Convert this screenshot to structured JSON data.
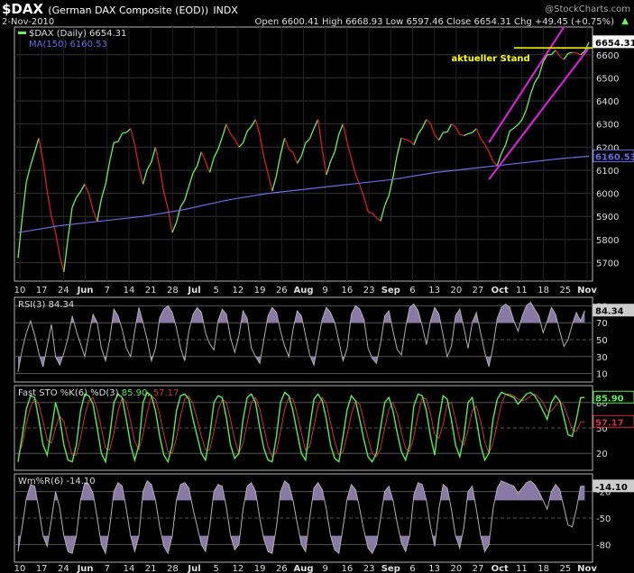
{
  "header": {
    "symbol": "$DAX",
    "name": "(German DAX Composite (EOD))",
    "exchange": "INDX",
    "date": "2-Nov-2010",
    "watermark": "@StockCharts.com",
    "ohlc": "Open 6600.41  High 6668.93  Low 6597.46  Close 6654.31  Chg +49.45 (+0.75%)",
    "chg_arrow": "▲"
  },
  "colors": {
    "background": "#000000",
    "panel_border": "#b5b5b5",
    "price_up": "#6cf15a",
    "price_down": "#d42020",
    "ma": "#6a6ae8",
    "channel": "#e81ee8",
    "level": "#ffff00",
    "indicator_line": "#b0b0b0",
    "indicator_fill": "#8a79a6",
    "stoch_k": "#58ec52",
    "stoch_d": "#d43030"
  },
  "chart_data": [
    {
      "type": "line",
      "panel": "price",
      "title": "$DAX (Daily) 6654.31",
      "legend": [
        {
          "label": "$DAX (Daily) 6654.31",
          "color": "#6cf15a"
        },
        {
          "label": "MA(150) 6160.53",
          "color": "#6a6ae8"
        }
      ],
      "ylim": [
        5620,
        6720
      ],
      "yticks": [
        5700,
        5800,
        5900,
        6000,
        6100,
        6200,
        6300,
        6400,
        6500,
        6600
      ],
      "xticks": [
        "10",
        "17",
        "24",
        "Jun",
        "7",
        "14",
        "21",
        "28",
        "Jul",
        "5",
        "12",
        "19",
        "26",
        "Aug",
        "9",
        "16",
        "23",
        "Sep",
        "6",
        "13",
        "20",
        "27",
        "Oct",
        "11",
        "18",
        "25",
        "Nov"
      ],
      "pivots": [
        [
          0,
          5720
        ],
        [
          2,
          6050
        ],
        [
          5,
          6240
        ],
        [
          8,
          5900
        ],
        [
          11,
          5660
        ],
        [
          13,
          5940
        ],
        [
          16,
          6040
        ],
        [
          19,
          5880
        ],
        [
          23,
          6220
        ],
        [
          27,
          6280
        ],
        [
          30,
          6040
        ],
        [
          33,
          6200
        ],
        [
          37,
          5830
        ],
        [
          41,
          6030
        ],
        [
          44,
          6180
        ],
        [
          46,
          6090
        ],
        [
          50,
          6300
        ],
        [
          53,
          6200
        ],
        [
          57,
          6320
        ],
        [
          61,
          6010
        ],
        [
          64,
          6240
        ],
        [
          67,
          6130
        ],
        [
          72,
          6320
        ],
        [
          74,
          6080
        ],
        [
          78,
          6300
        ],
        [
          80,
          6150
        ],
        [
          84,
          5920
        ],
        [
          87,
          5880
        ],
        [
          89,
          5990
        ],
        [
          92,
          6240
        ],
        [
          95,
          6210
        ],
        [
          98,
          6320
        ],
        [
          101,
          6230
        ],
        [
          104,
          6300
        ],
        [
          107,
          6250
        ],
        [
          110,
          6280
        ],
        [
          113,
          6180
        ],
        [
          115,
          6120
        ],
        [
          118,
          6270
        ],
        [
          121,
          6320
        ],
        [
          124,
          6480
        ],
        [
          127,
          6600
        ],
        [
          129,
          6620
        ],
        [
          131,
          6580
        ],
        [
          133,
          6610
        ],
        [
          135,
          6600
        ],
        [
          137,
          6654.31
        ]
      ],
      "ma150": [
        [
          0,
          5830
        ],
        [
          10,
          5860
        ],
        [
          20,
          5880
        ],
        [
          30,
          5900
        ],
        [
          40,
          5930
        ],
        [
          50,
          5970
        ],
        [
          60,
          6000
        ],
        [
          70,
          6020
        ],
        [
          80,
          6040
        ],
        [
          90,
          6060
        ],
        [
          100,
          6090
        ],
        [
          110,
          6110
        ],
        [
          120,
          6130
        ],
        [
          130,
          6150
        ],
        [
          137,
          6160.53
        ]
      ],
      "last_value": "6654.31",
      "ma_last_value": "6160.53",
      "annotation": "aktueller Stand",
      "level": 6630
    },
    {
      "type": "area",
      "panel": "rsi",
      "title": "RSI(3) 84.34",
      "ylim": [
        0,
        100
      ],
      "yticks": [
        10,
        30,
        50,
        70,
        90
      ],
      "series": [
        {
          "name": "RSI(3)",
          "values": [
            12,
            38,
            58,
            72,
            55,
            34,
            18,
            42,
            68,
            30,
            20,
            34,
            52,
            78,
            60,
            45,
            30,
            55,
            80,
            70,
            40,
            25,
            50,
            86,
            78,
            62,
            40,
            30,
            60,
            88,
            70,
            50,
            25,
            40,
            76,
            86,
            90,
            82,
            64,
            40,
            25,
            60,
            80,
            88,
            82,
            58,
            45,
            38,
            72,
            86,
            80,
            52,
            35,
            55,
            84,
            75,
            40,
            30,
            22,
            50,
            78,
            88,
            82,
            60,
            42,
            30,
            62,
            84,
            78,
            55,
            32,
            20,
            48,
            74,
            88,
            82,
            70,
            48,
            25,
            40,
            80,
            90,
            86,
            74,
            40,
            28,
            22,
            46,
            78,
            84,
            60,
            38,
            32,
            64,
            88,
            92,
            84,
            66,
            44,
            72,
            88,
            80,
            55,
            30,
            42,
            78,
            86,
            64,
            40,
            70,
            82,
            58,
            35,
            18,
            42,
            75,
            88,
            92,
            88,
            72,
            60,
            78,
            90,
            94,
            86,
            78,
            58,
            72,
            88,
            80,
            60,
            42,
            50,
            68,
            82,
            72,
            84.34
          ]
        }
      ],
      "last_value": "84.34"
    },
    {
      "type": "line",
      "panel": "stoch",
      "title": "Fast STO %K(6) %D(3) 85.90, 57.17",
      "ylim": [
        0,
        100
      ],
      "yticks": [
        20,
        50,
        80
      ],
      "series": [
        {
          "name": "%K(6)",
          "values": [
            10,
            40,
            72,
            88,
            86,
            60,
            30,
            18,
            48,
            80,
            62,
            30,
            12,
            10,
            30,
            70,
            90,
            88,
            78,
            50,
            20,
            10,
            40,
            80,
            90,
            86,
            60,
            30,
            12,
            30,
            80,
            92,
            88,
            70,
            40,
            18,
            10,
            30,
            70,
            88,
            90,
            84,
            60,
            40,
            20,
            12,
            40,
            80,
            88,
            86,
            62,
            30,
            14,
            20,
            60,
            86,
            90,
            80,
            50,
            26,
            12,
            10,
            40,
            80,
            92,
            88,
            70,
            44,
            20,
            12,
            50,
            84,
            90,
            82,
            60,
            30,
            14,
            10,
            40,
            72,
            88,
            82,
            60,
            36,
            16,
            10,
            20,
            50,
            80,
            86,
            70,
            44,
            22,
            12,
            30,
            76,
            90,
            88,
            70,
            40,
            18,
            60,
            88,
            84,
            60,
            30,
            16,
            40,
            80,
            86,
            60,
            30,
            12,
            20,
            60,
            84,
            92,
            90,
            88,
            86,
            78,
            84,
            90,
            92,
            88,
            80,
            70,
            60,
            80,
            88,
            82,
            62,
            42,
            40,
            60,
            85.9,
            85.9
          ]
        },
        {
          "name": "%D(3)",
          "values": [
            18,
            30,
            55,
            75,
            85,
            78,
            58,
            36,
            32,
            50,
            64,
            58,
            36,
            18,
            18,
            38,
            64,
            82,
            86,
            72,
            50,
            26,
            24,
            44,
            70,
            86,
            80,
            58,
            34,
            24,
            42,
            68,
            88,
            84,
            66,
            42,
            22,
            20,
            38,
            64,
            84,
            88,
            78,
            60,
            40,
            24,
            24,
            46,
            70,
            84,
            80,
            60,
            36,
            20,
            32,
            56,
            80,
            86,
            72,
            50,
            28,
            16,
            22,
            46,
            72,
            86,
            84,
            66,
            44,
            24,
            28,
            52,
            76,
            86,
            78,
            56,
            34,
            18,
            22,
            42,
            66,
            82,
            78,
            58,
            38,
            20,
            16,
            26,
            50,
            72,
            80,
            66,
            44,
            26,
            22,
            40,
            66,
            86,
            84,
            66,
            42,
            38,
            54,
            78,
            80,
            60,
            36,
            30,
            48,
            70,
            76,
            58,
            34,
            20,
            32,
            56,
            78,
            90,
            90,
            88,
            84,
            82,
            84,
            88,
            90,
            86,
            80,
            70,
            70,
            76,
            82,
            76,
            62,
            48,
            46,
            57.17,
            57.17
          ]
        }
      ],
      "last_value": "85.90",
      "d_last_value": "57.17"
    },
    {
      "type": "area",
      "panel": "williams",
      "title": "Wm%R(6) -14.10",
      "ylim": [
        -100,
        0
      ],
      "yticks": [
        -20,
        -50,
        -80
      ],
      "series": [
        {
          "name": "Wm%R(6)",
          "values": [
            -88,
            -60,
            -28,
            -12,
            -14,
            -40,
            -70,
            -82,
            -52,
            -20,
            -38,
            -70,
            -88,
            -90,
            -70,
            -30,
            -10,
            -12,
            -22,
            -50,
            -80,
            -90,
            -60,
            -20,
            -10,
            -14,
            -40,
            -70,
            -88,
            -70,
            -20,
            -8,
            -12,
            -30,
            -60,
            -82,
            -90,
            -70,
            -30,
            -12,
            -10,
            -16,
            -40,
            -60,
            -80,
            -88,
            -60,
            -20,
            -12,
            -14,
            -38,
            -70,
            -86,
            -80,
            -40,
            -14,
            -10,
            -20,
            -50,
            -74,
            -88,
            -90,
            -60,
            -20,
            -8,
            -12,
            -30,
            -56,
            -80,
            -88,
            -50,
            -16,
            -10,
            -18,
            -40,
            -70,
            -86,
            -90,
            -60,
            -28,
            -12,
            -18,
            -40,
            -64,
            -84,
            -90,
            -80,
            -50,
            -20,
            -14,
            -30,
            -56,
            -78,
            -88,
            -70,
            -24,
            -10,
            -12,
            -30,
            -60,
            -82,
            -40,
            -12,
            -16,
            -40,
            -70,
            -84,
            -60,
            -20,
            -14,
            -40,
            -70,
            -88,
            -80,
            -40,
            -16,
            -8,
            -10,
            -12,
            -14,
            -22,
            -16,
            -10,
            -8,
            -12,
            -20,
            -30,
            -40,
            -20,
            -12,
            -18,
            -38,
            -58,
            -60,
            -40,
            -14.1,
            -14.1
          ]
        }
      ],
      "last_value": "-14.10"
    }
  ]
}
